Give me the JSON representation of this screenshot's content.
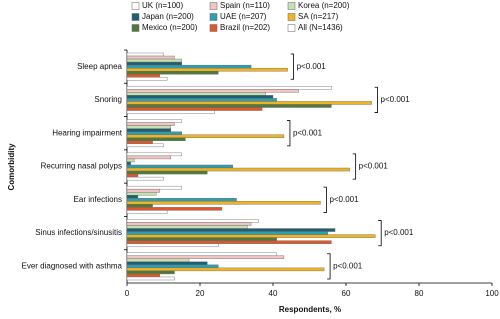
{
  "chart_data": {
    "type": "hbar",
    "y_label": "Comorbidity",
    "x_label": "Respondents, %",
    "categories": [
      "Sleep apnea",
      "Snoring",
      "Hearing impairment",
      "Recurring nasal polyps",
      "Ear infections",
      "Sinus infections/sinusitis",
      "Ever diagnosed with asthma"
    ],
    "series": [
      {
        "name": "UK (n=100)",
        "color": "#ffffff",
        "values": [
          10,
          56,
          15,
          15,
          15,
          36,
          41
        ]
      },
      {
        "name": "Spain (n=110)",
        "color": "#f2c4c4",
        "values": [
          13,
          47,
          13,
          12,
          9,
          34,
          43
        ]
      },
      {
        "name": "Korea (n=200)",
        "color": "#c6e0b4",
        "values": [
          15,
          38,
          12,
          2,
          8,
          33,
          17
        ]
      },
      {
        "name": "Japan (n=200)",
        "color": "#1f5f73",
        "values": [
          15,
          40,
          12,
          1,
          3,
          57,
          22
        ]
      },
      {
        "name": "UAE (n=207)",
        "color": "#2e9fb0",
        "values": [
          34,
          41,
          15,
          29,
          30,
          55,
          25
        ]
      },
      {
        "name": "SA (n=217)",
        "color": "#f0b323",
        "values": [
          44,
          67,
          43,
          61,
          53,
          68,
          54
        ]
      },
      {
        "name": "Mexico (n=200)",
        "color": "#4f7a3a",
        "values": [
          25,
          56,
          16,
          22,
          7,
          41,
          13
        ]
      },
      {
        "name": "Brazil (n=202)",
        "color": "#e2572a",
        "values": [
          9,
          37,
          7,
          3,
          26,
          56,
          9
        ]
      },
      {
        "name": "All (N=1436)",
        "color": "#ffffff",
        "values": [
          11,
          24,
          10,
          10,
          11,
          25,
          13
        ]
      }
    ],
    "annotations": [
      "p<0.001",
      "p<0.001",
      "p<0.001",
      "p<0.001",
      "p<0.001",
      "p<0.001",
      "p<0.001"
    ],
    "xlim": [
      0,
      100
    ],
    "xticks": [
      0,
      20,
      40,
      60,
      80,
      100
    ]
  }
}
